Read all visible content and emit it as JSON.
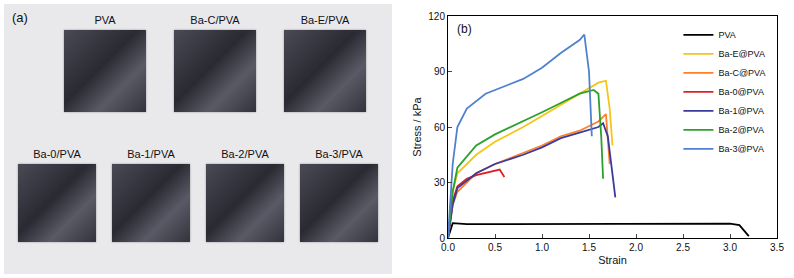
{
  "photo": {
    "label": "(a)",
    "rows": [
      [
        "PVA",
        "Ba-C/PVA",
        "Ba-E/PVA"
      ],
      [
        "Ba-0/PVA",
        "Ba-1/PVA",
        "Ba-2/PVA",
        "Ba-3/PVA"
      ]
    ]
  },
  "chart_data": {
    "type": "line",
    "annotations": [
      {
        "text": "(b)"
      }
    ],
    "x_label": "Strain",
    "y_label": "Stress / kPa",
    "xlim": [
      0,
      3.5
    ],
    "xticks": [
      {
        "value": 0,
        "label": "0.0"
      },
      {
        "value": 0.5,
        "label": "0.5"
      },
      {
        "value": 1,
        "label": "1.0"
      },
      {
        "value": 1.5,
        "label": "1.5"
      },
      {
        "value": 2,
        "label": "2.0"
      },
      {
        "value": 2.5,
        "label": "2.5"
      },
      {
        "value": 3,
        "label": "3.0"
      },
      {
        "value": 3.5,
        "label": "3.5"
      }
    ],
    "ylim": [
      0,
      120
    ],
    "yticks": [
      0,
      30,
      60,
      90,
      120
    ],
    "grid": false,
    "legend": "upper right",
    "series": [
      {
        "name": "PVA",
        "color": "#000000",
        "x": [
          0,
          0.05,
          0.2,
          0.5,
          1.0,
          1.5,
          2.0,
          2.5,
          3.0,
          3.1,
          3.15,
          3.2
        ],
        "values": [
          0,
          8,
          7.5,
          7.5,
          7.8,
          7.5,
          7.8,
          7.5,
          7.8,
          7,
          4,
          1
        ]
      },
      {
        "name": "Ba-E@PVA",
        "color": "#f5c518",
        "x": [
          0,
          0.05,
          0.1,
          0.3,
          0.5,
          0.8,
          1.0,
          1.2,
          1.4,
          1.6,
          1.68,
          1.72,
          1.75
        ],
        "values": [
          0,
          25,
          35,
          45,
          52,
          60,
          66,
          72,
          78,
          84,
          85,
          70,
          50
        ]
      },
      {
        "name": "Ba-C@PVA",
        "color": "#ff7f2a",
        "x": [
          0,
          0.05,
          0.1,
          0.3,
          0.5,
          0.8,
          1.0,
          1.2,
          1.4,
          1.6,
          1.68,
          1.72
        ],
        "values": [
          0,
          18,
          25,
          35,
          40,
          46,
          50,
          55,
          58,
          63,
          67,
          40
        ]
      },
      {
        "name": "Ba-0@PVA",
        "color": "#e02020",
        "x": [
          0,
          0.05,
          0.1,
          0.2,
          0.3,
          0.45,
          0.55,
          0.6
        ],
        "values": [
          0,
          20,
          28,
          32,
          34,
          36,
          37,
          33
        ]
      },
      {
        "name": "Ba-1@PVA",
        "color": "#3b3b9e",
        "x": [
          0,
          0.05,
          0.1,
          0.3,
          0.5,
          0.8,
          1.0,
          1.2,
          1.4,
          1.6,
          1.65,
          1.7,
          1.78
        ],
        "values": [
          0,
          18,
          27,
          35,
          40,
          45,
          49,
          54,
          57,
          60,
          62,
          55,
          22
        ]
      },
      {
        "name": "Ba-2@PVA",
        "color": "#2ca02c",
        "x": [
          0,
          0.05,
          0.1,
          0.3,
          0.5,
          0.8,
          1.0,
          1.2,
          1.4,
          1.55,
          1.6,
          1.63,
          1.65
        ],
        "values": [
          0,
          25,
          38,
          50,
          56,
          63,
          68,
          73,
          78,
          80,
          78,
          55,
          32
        ]
      },
      {
        "name": "Ba-3@PVA",
        "color": "#4f81d0",
        "x": [
          0,
          0.05,
          0.1,
          0.2,
          0.4,
          0.6,
          0.8,
          1.0,
          1.2,
          1.4,
          1.45,
          1.5,
          1.53
        ],
        "values": [
          0,
          40,
          60,
          70,
          78,
          82,
          86,
          92,
          100,
          107,
          110,
          90,
          55
        ]
      }
    ]
  }
}
